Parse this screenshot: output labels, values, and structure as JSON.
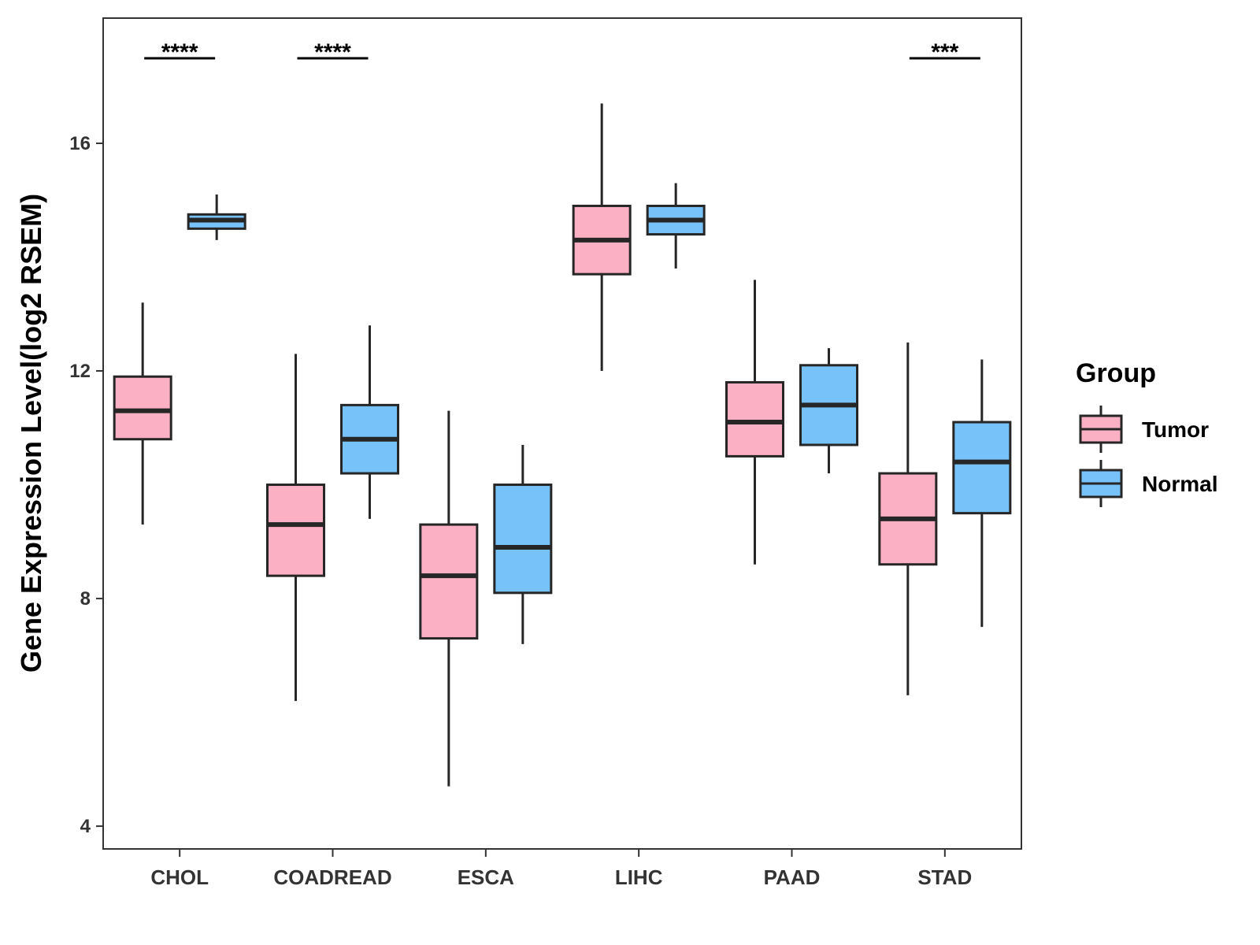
{
  "chart_data": {
    "type": "boxplot",
    "title": "",
    "xlabel": "",
    "ylabel": "Gene Expression Level(log2 RSEM)",
    "ylim": [
      3.6,
      18.2
    ],
    "yticks": [
      4,
      8,
      12,
      16
    ],
    "ytick_labels": [
      "4",
      "8",
      "12",
      "16"
    ],
    "grid": false,
    "legend_position": "right",
    "categories": [
      "CHOL",
      "COADREAD",
      "ESCA",
      "LIHC",
      "PAAD",
      "STAD"
    ],
    "series": [
      {
        "name": "Tumor",
        "color": "#FBB0C3",
        "boxes": [
          {
            "min": 9.3,
            "q1": 10.8,
            "median": 11.3,
            "q3": 11.9,
            "max": 13.2
          },
          {
            "min": 6.2,
            "q1": 8.4,
            "median": 9.3,
            "q3": 10.0,
            "max": 12.3
          },
          {
            "min": 4.7,
            "q1": 7.3,
            "median": 8.4,
            "q3": 9.3,
            "max": 11.3
          },
          {
            "min": 12.0,
            "q1": 13.7,
            "median": 14.3,
            "q3": 14.9,
            "max": 16.7
          },
          {
            "min": 8.6,
            "q1": 10.5,
            "median": 11.1,
            "q3": 11.8,
            "max": 13.6
          },
          {
            "min": 6.3,
            "q1": 8.6,
            "median": 9.4,
            "q3": 10.2,
            "max": 12.5
          }
        ]
      },
      {
        "name": "Normal",
        "color": "#77C2F8",
        "boxes": [
          {
            "min": 14.3,
            "q1": 14.5,
            "median": 14.65,
            "q3": 14.75,
            "max": 15.1
          },
          {
            "min": 9.4,
            "q1": 10.2,
            "median": 10.8,
            "q3": 11.4,
            "max": 12.8
          },
          {
            "min": 7.2,
            "q1": 8.1,
            "median": 8.9,
            "q3": 10.0,
            "max": 10.7
          },
          {
            "min": 13.8,
            "q1": 14.4,
            "median": 14.65,
            "q3": 14.9,
            "max": 15.3
          },
          {
            "min": 10.2,
            "q1": 10.7,
            "median": 11.4,
            "q3": 12.1,
            "max": 12.4
          },
          {
            "min": 7.5,
            "q1": 9.5,
            "median": 10.4,
            "q3": 11.1,
            "max": 12.2
          }
        ]
      }
    ],
    "significance": [
      "****",
      "****",
      "",
      "",
      "",
      "***"
    ],
    "legend": {
      "title": "Group",
      "entries": [
        "Tumor",
        "Normal"
      ]
    }
  }
}
